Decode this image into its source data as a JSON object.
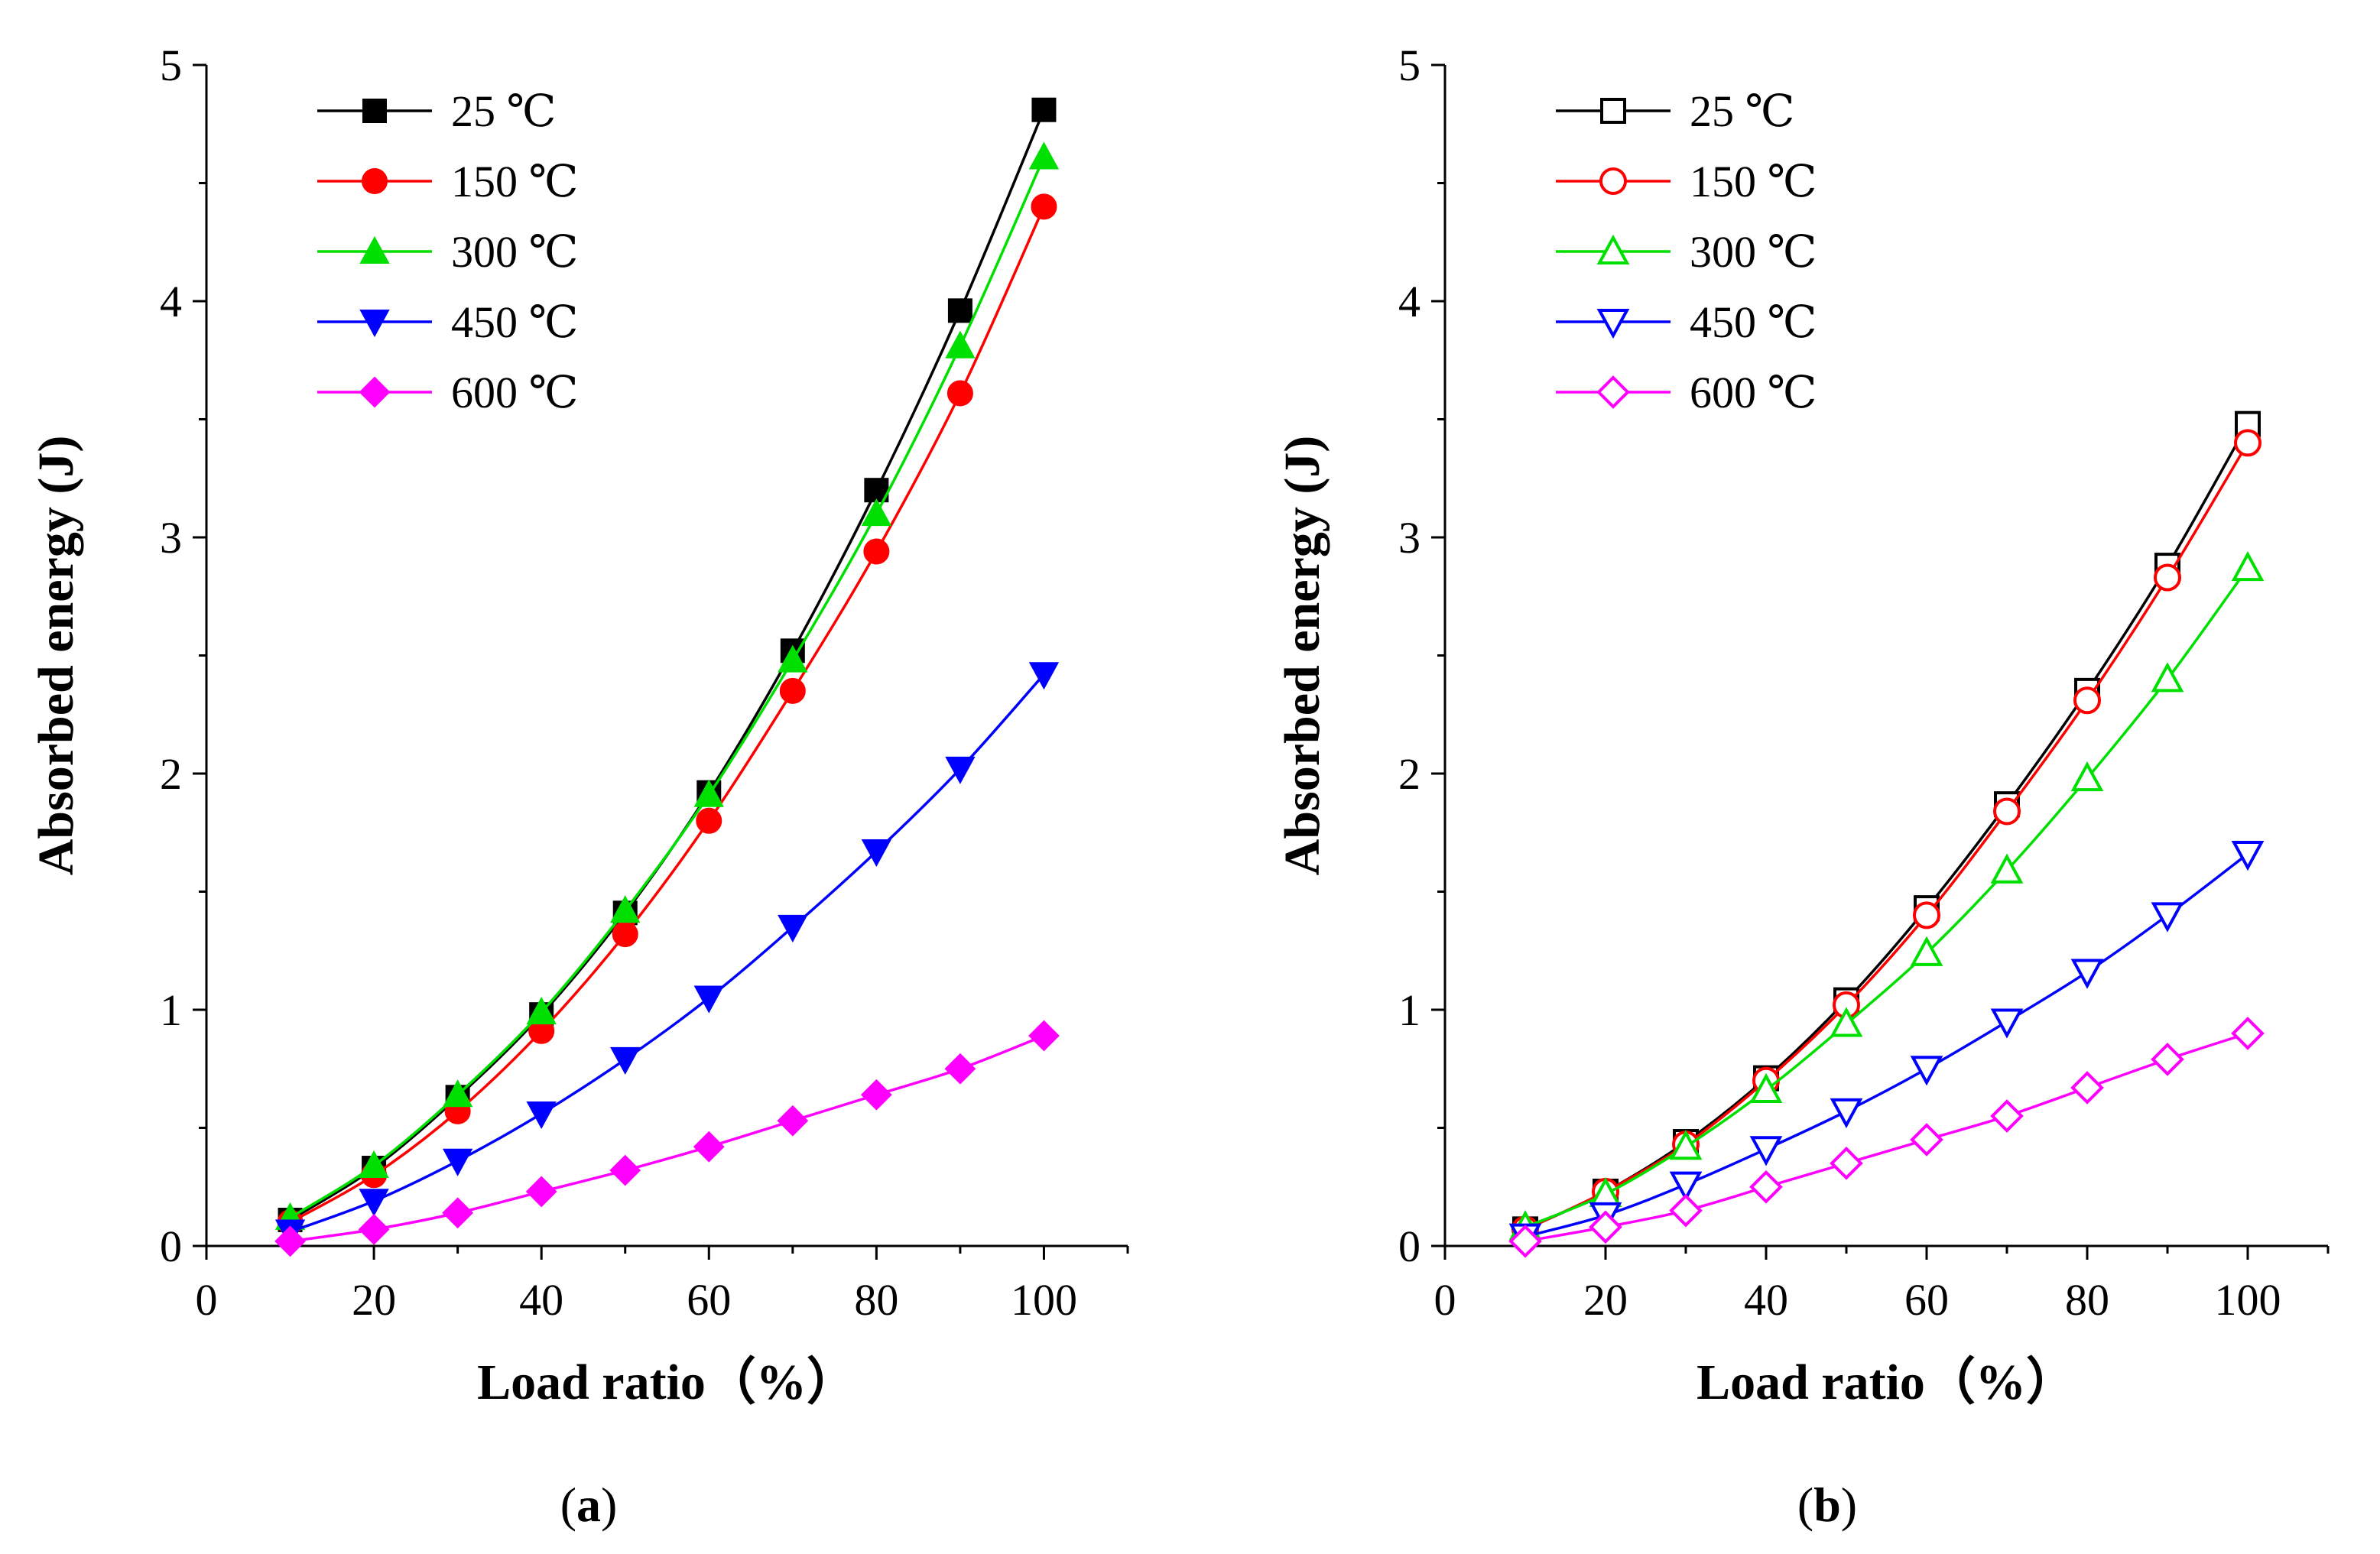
{
  "chart_data": [
    {
      "type": "line",
      "panel_label": "a",
      "xlabel": "Load ratio（%）",
      "ylabel": "Absorbed energy (J)",
      "xlim": [
        0,
        110
      ],
      "ylim": [
        0,
        5
      ],
      "xticks": [
        0,
        20,
        40,
        60,
        80,
        100
      ],
      "yticks": [
        0,
        1,
        2,
        3,
        4,
        5
      ],
      "legend_position": "top-left",
      "marker_fill": "filled",
      "x": [
        10,
        20,
        30,
        40,
        50,
        60,
        70,
        80,
        90,
        100
      ],
      "series": [
        {
          "name": "25 ℃",
          "color": "#000000",
          "marker": "square",
          "values": [
            0.11,
            0.33,
            0.63,
            0.98,
            1.41,
            1.92,
            2.52,
            3.2,
            3.96,
            4.81
          ]
        },
        {
          "name": "150 ℃",
          "color": "#ff0000",
          "marker": "circle",
          "values": [
            0.1,
            0.3,
            0.57,
            0.91,
            1.32,
            1.8,
            2.35,
            2.94,
            3.61,
            4.4
          ]
        },
        {
          "name": "300 ℃",
          "color": "#00e000",
          "marker": "triangle-up",
          "values": [
            0.12,
            0.34,
            0.64,
            0.99,
            1.42,
            1.91,
            2.48,
            3.1,
            3.81,
            4.61
          ]
        },
        {
          "name": "450 ℃",
          "color": "#0000ff",
          "marker": "triangle-down",
          "values": [
            0.06,
            0.19,
            0.36,
            0.56,
            0.79,
            1.05,
            1.35,
            1.67,
            2.02,
            2.42
          ]
        },
        {
          "name": "600 ℃",
          "color": "#ff00ff",
          "marker": "diamond",
          "values": [
            0.02,
            0.07,
            0.14,
            0.23,
            0.32,
            0.42,
            0.53,
            0.64,
            0.75,
            0.89
          ]
        }
      ]
    },
    {
      "type": "line",
      "panel_label": "b",
      "xlabel": "Load ratio（%）",
      "ylabel": "Absorbed energy (J)",
      "xlim": [
        0,
        110
      ],
      "ylim": [
        0,
        5
      ],
      "xticks": [
        0,
        20,
        40,
        60,
        80,
        100
      ],
      "yticks": [
        0,
        1,
        2,
        3,
        4,
        5
      ],
      "legend_position": "top-left",
      "marker_fill": "hollow",
      "x": [
        10,
        20,
        30,
        40,
        50,
        60,
        70,
        80,
        90,
        100
      ],
      "series": [
        {
          "name": "25 ℃",
          "color": "#000000",
          "marker": "square",
          "values": [
            0.07,
            0.23,
            0.44,
            0.71,
            1.04,
            1.43,
            1.87,
            2.35,
            2.88,
            3.48
          ]
        },
        {
          "name": "150 ℃",
          "color": "#ff0000",
          "marker": "circle",
          "values": [
            0.07,
            0.23,
            0.43,
            0.7,
            1.02,
            1.4,
            1.84,
            2.31,
            2.83,
            3.4
          ]
        },
        {
          "name": "300 ℃",
          "color": "#00e000",
          "marker": "triangle-up",
          "values": [
            0.08,
            0.22,
            0.42,
            0.66,
            0.94,
            1.24,
            1.59,
            1.98,
            2.4,
            2.87
          ]
        },
        {
          "name": "450 ℃",
          "color": "#0000ff",
          "marker": "triangle-down",
          "values": [
            0.04,
            0.13,
            0.26,
            0.41,
            0.57,
            0.75,
            0.95,
            1.16,
            1.4,
            1.66
          ]
        },
        {
          "name": "600 ℃",
          "color": "#ff00ff",
          "marker": "diamond",
          "values": [
            0.02,
            0.08,
            0.15,
            0.25,
            0.35,
            0.45,
            0.55,
            0.67,
            0.79,
            0.9
          ]
        }
      ]
    }
  ]
}
